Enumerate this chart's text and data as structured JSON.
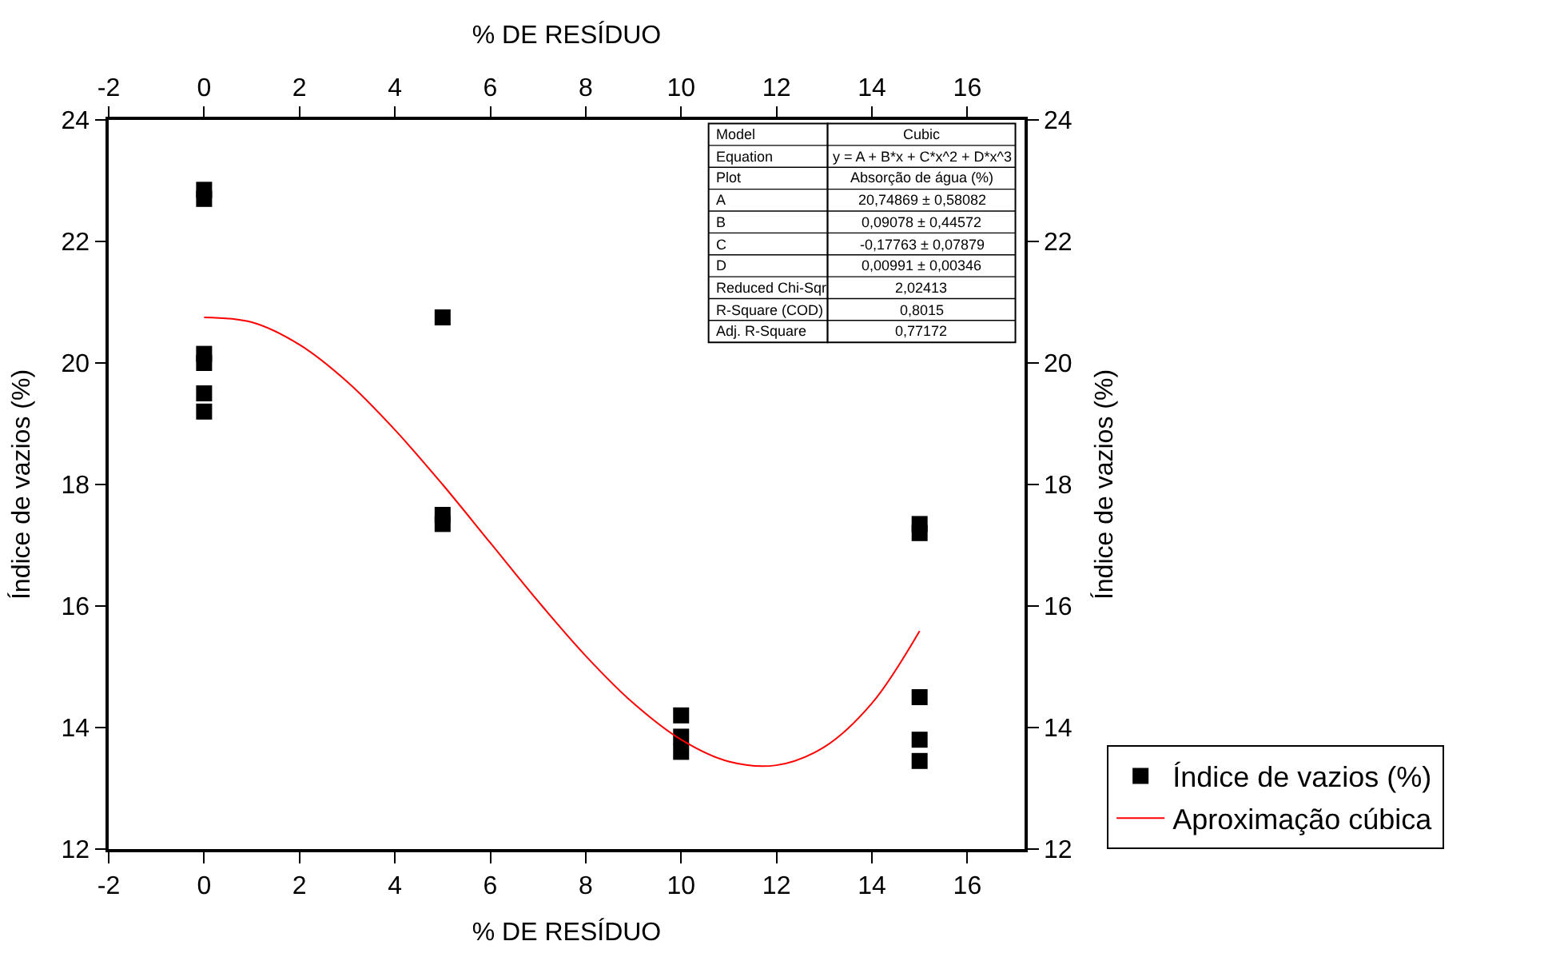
{
  "chart_data": {
    "type": "scatter",
    "xlabel": "% DE RESÍDUO",
    "x2label": "% DE RESÍDUO",
    "ylabel": "Índice de vazios (%)",
    "y2label": "Índice de vazios (%)",
    "xlim": [
      -2,
      17.2
    ],
    "xticks": [
      -2,
      0,
      2,
      4,
      6,
      8,
      10,
      12,
      14,
      16
    ],
    "x2lim": [
      -2,
      17.2
    ],
    "x2ticks": [
      -2,
      0,
      2,
      4,
      6,
      8,
      10,
      12,
      14,
      16
    ],
    "ylim": [
      12,
      24
    ],
    "yticks": [
      12,
      14,
      16,
      18,
      20,
      22,
      24
    ],
    "y2lim": [
      12,
      24
    ],
    "y2ticks": [
      12,
      14,
      16,
      18,
      20,
      22,
      24
    ],
    "grid": false,
    "legend": "bottom right",
    "series": [
      {
        "name": "Índice de vazios (%)",
        "marker": "square",
        "color": "#000000",
        "x": [
          0,
          0,
          0,
          0,
          0,
          0,
          5,
          5,
          5,
          10,
          10,
          10,
          15,
          15,
          15,
          15,
          15
        ],
        "values": [
          22.85,
          22.7,
          20.15,
          20.0,
          19.5,
          19.2,
          20.75,
          17.5,
          17.35,
          14.2,
          13.85,
          13.6,
          17.35,
          17.2,
          14.5,
          13.8,
          13.45
        ]
      },
      {
        "name": "Aproximação cúbica",
        "type": "line",
        "marker": "none",
        "line_style": "solid",
        "color": "#ff0000",
        "x": [
          0,
          1,
          2,
          3,
          4,
          5,
          6,
          7,
          8,
          9,
          10,
          11,
          12,
          13,
          14,
          15
        ],
        "values": [
          20.75,
          20.67,
          20.3,
          19.69,
          18.9,
          18.0,
          17.04,
          16.08,
          15.18,
          14.4,
          13.8,
          13.44,
          13.38,
          13.68,
          14.4,
          15.59
        ]
      }
    ],
    "annotations": [
      "Model",
      "Cubic",
      "Equation",
      "y = A + B*x + C*x^2 + D*x^3",
      "Plot",
      "Absorção de água (%)",
      "A",
      "20,74869 ± 0,58082",
      "B",
      "0,09078 ± 0,44572",
      "C",
      "-0,17763 ± 0,07879",
      "D",
      "0,00991 ± 0,00346",
      "Reduced Chi-Sqr",
      "2,02413",
      "R-Square (COD)",
      "0,8015",
      "Adj. R-Square",
      "0,77172"
    ]
  }
}
